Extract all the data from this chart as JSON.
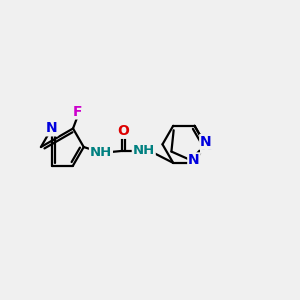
{
  "bg_color": "#f0f0f0",
  "bond_color": "#000000",
  "bond_lw": 1.6,
  "fig_size": [
    3.0,
    3.0
  ],
  "dpi": 100,
  "N_color": "#0000dd",
  "F_color": "#cc00cc",
  "O_color": "#dd0000",
  "NH_color": "#008080",
  "xlim": [
    0,
    10
  ],
  "ylim": [
    2.5,
    7.5
  ]
}
